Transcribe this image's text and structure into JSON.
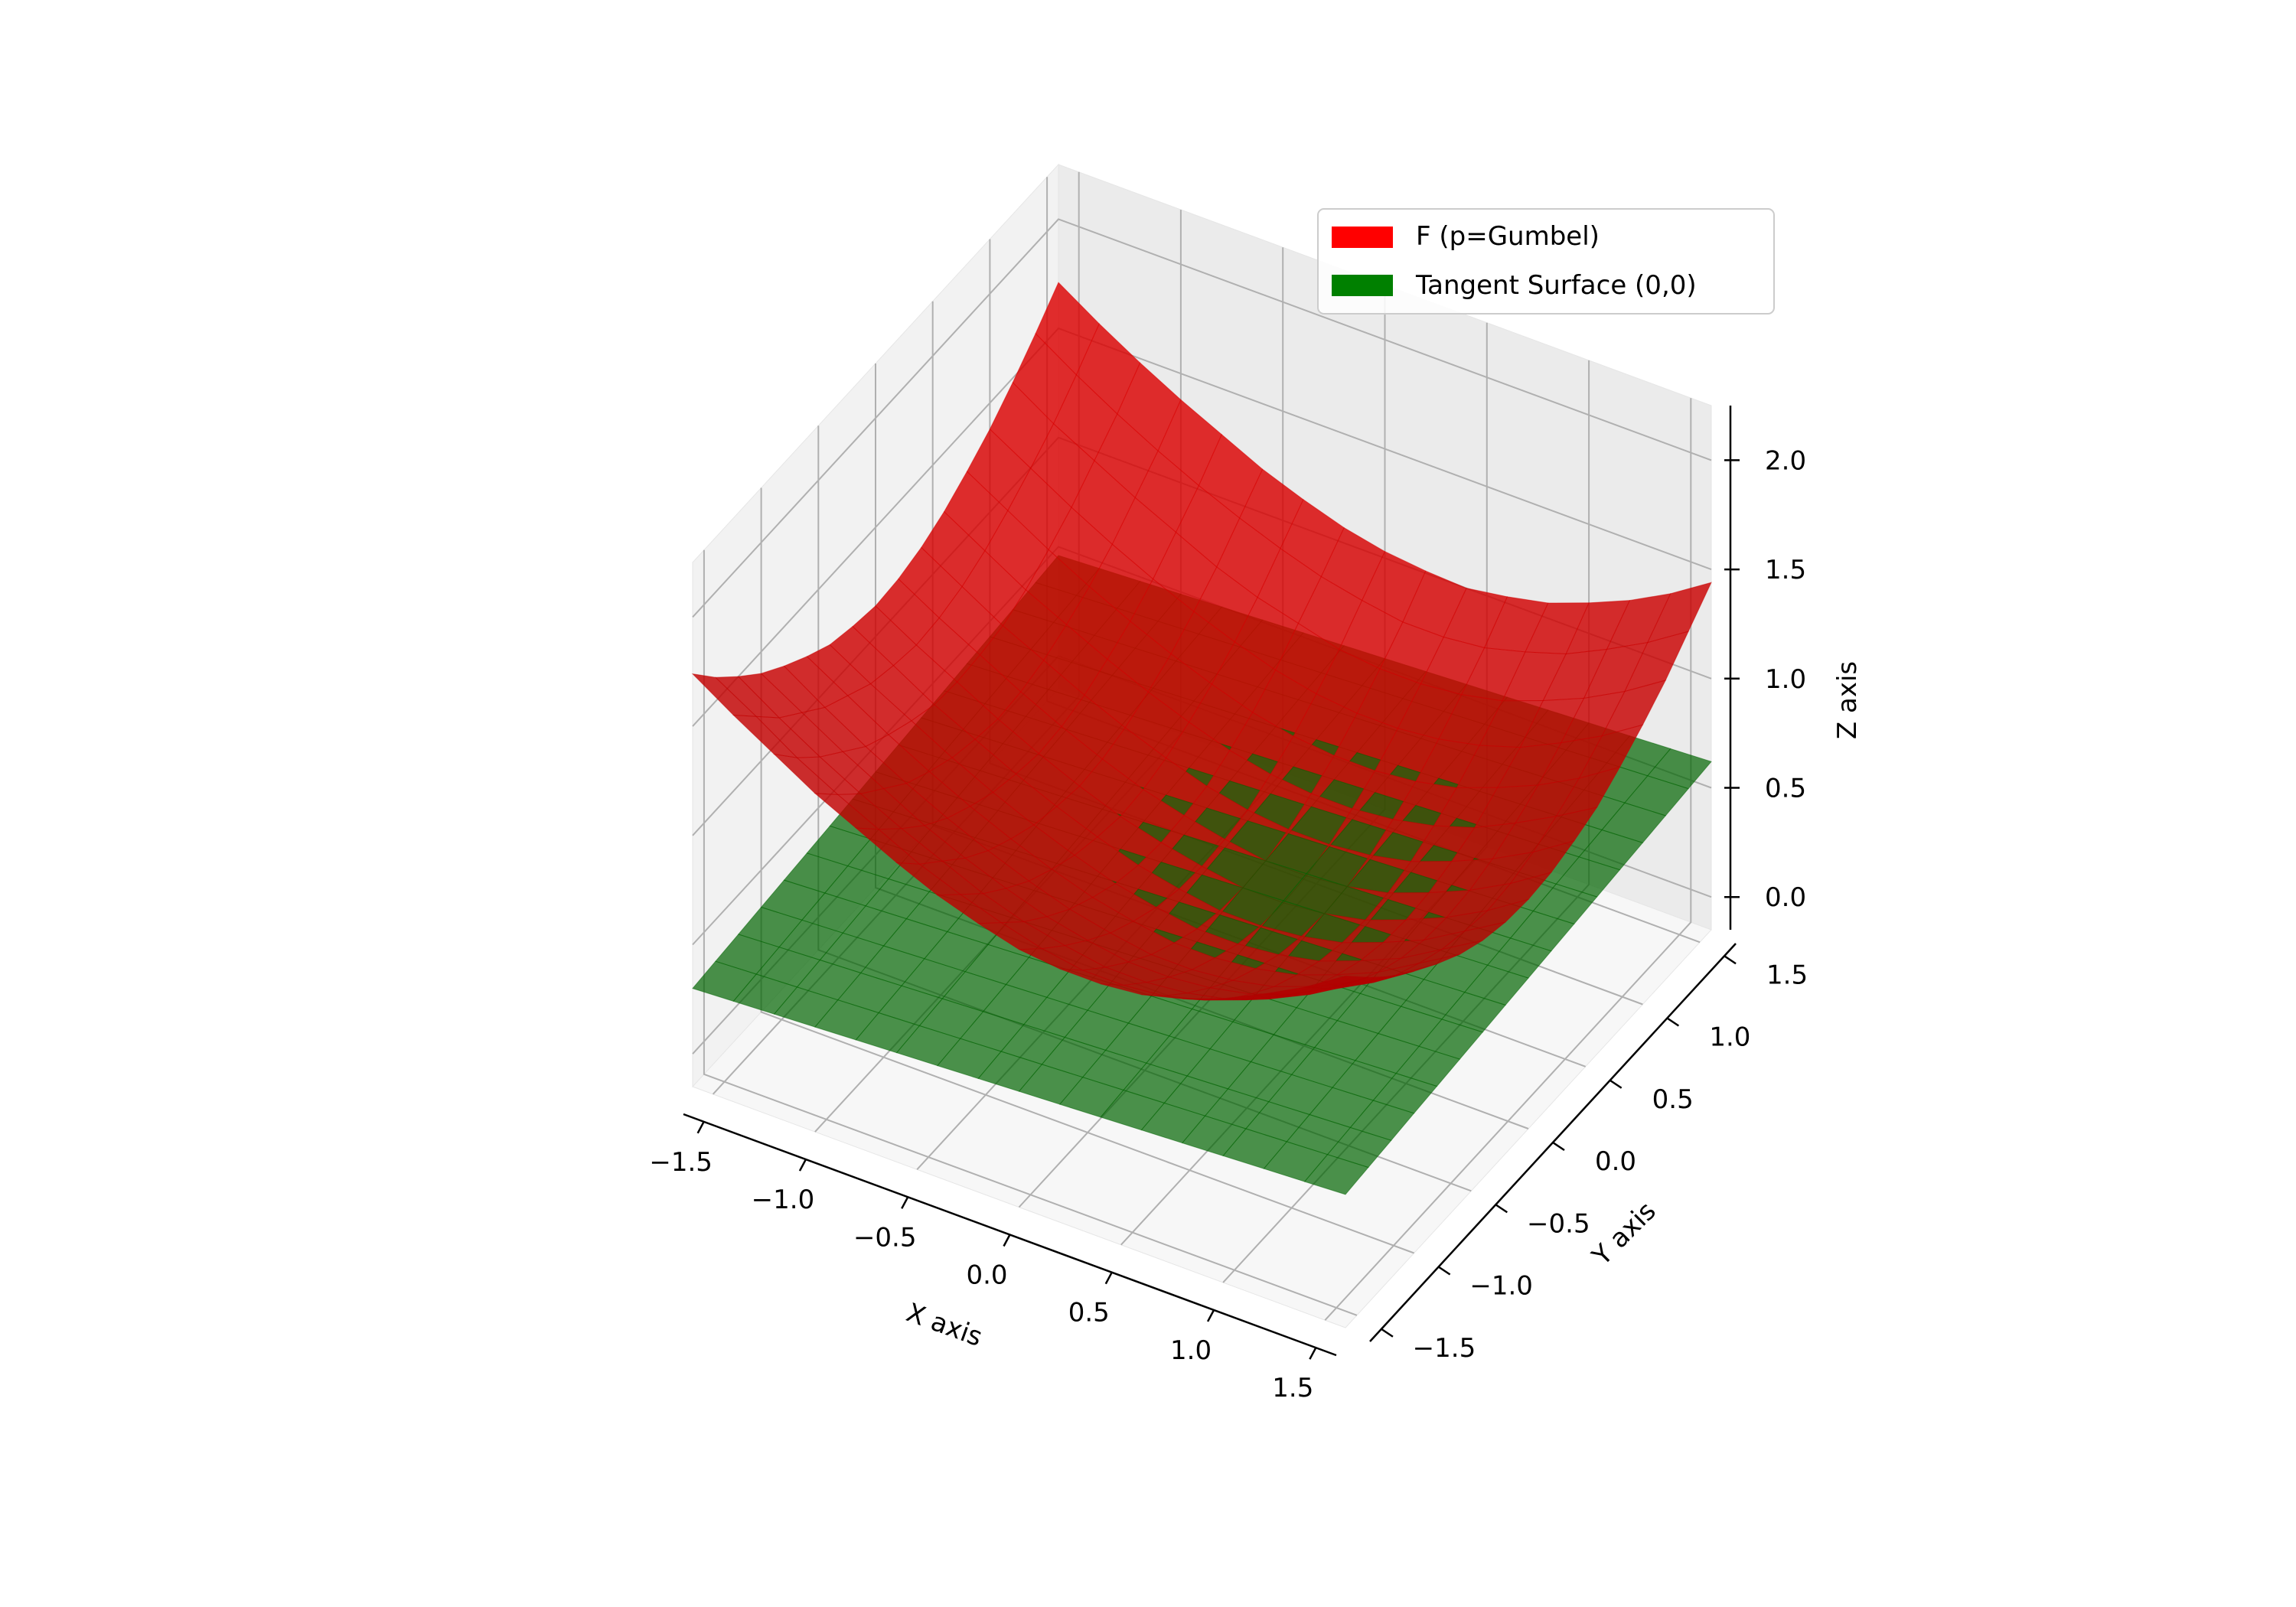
{
  "chart_data": {
    "type": "surface3d",
    "x": [
      -1.6,
      -1.4,
      -1.2,
      -1.0,
      -0.8,
      -0.6,
      -0.4,
      -0.2,
      0.0,
      0.2,
      0.4,
      0.6,
      0.8,
      1.0,
      1.2,
      1.4,
      1.6
    ],
    "y": [
      -1.6,
      -1.4,
      -1.2,
      -1.0,
      -0.8,
      -0.6,
      -0.4,
      -0.2,
      0.0,
      0.2,
      0.4,
      0.6,
      0.8,
      1.0,
      1.2,
      1.4,
      1.6
    ],
    "series": [
      {
        "name": "F (p=Gumbel)",
        "color": "#ff0000",
        "z": [
          [
            1.74,
            1.62,
            1.51,
            1.4,
            1.31,
            1.22,
            1.14,
            1.08,
            1.03,
            1.01,
            1.01,
            1.03,
            1.08,
            1.15,
            1.24,
            1.34,
            1.46
          ],
          [
            1.61,
            1.5,
            1.38,
            1.28,
            1.19,
            1.1,
            1.03,
            0.97,
            0.92,
            0.89,
            0.89,
            0.91,
            0.96,
            1.03,
            1.12,
            1.22,
            1.34
          ],
          [
            1.5,
            1.38,
            1.27,
            1.17,
            1.08,
            1.0,
            0.92,
            0.86,
            0.82,
            0.79,
            0.79,
            0.81,
            0.85,
            0.92,
            1.01,
            1.12,
            1.23
          ],
          [
            1.4,
            1.29,
            1.18,
            1.08,
            0.98,
            0.9,
            0.83,
            0.77,
            0.73,
            0.7,
            0.7,
            0.72,
            0.76,
            0.83,
            0.92,
            1.02,
            1.14
          ],
          [
            1.32,
            1.2,
            1.09,
            0.99,
            0.9,
            0.82,
            0.75,
            0.69,
            0.65,
            0.62,
            0.62,
            0.64,
            0.68,
            0.75,
            0.84,
            0.94,
            1.06
          ],
          [
            1.25,
            1.14,
            1.03,
            0.93,
            0.84,
            0.76,
            0.69,
            0.63,
            0.59,
            0.56,
            0.56,
            0.58,
            0.62,
            0.69,
            0.77,
            0.88,
            0.99
          ],
          [
            1.19,
            1.08,
            0.98,
            0.88,
            0.79,
            0.71,
            0.64,
            0.58,
            0.54,
            0.51,
            0.51,
            0.53,
            0.57,
            0.64,
            0.72,
            0.83,
            0.94
          ],
          [
            1.16,
            1.05,
            0.94,
            0.85,
            0.76,
            0.68,
            0.61,
            0.55,
            0.51,
            0.48,
            0.48,
            0.5,
            0.54,
            0.61,
            0.69,
            0.8,
            0.91
          ],
          [
            1.14,
            1.03,
            0.93,
            0.83,
            0.74,
            0.66,
            0.59,
            0.54,
            0.5,
            0.47,
            0.47,
            0.49,
            0.53,
            0.6,
            0.68,
            0.78,
            0.9
          ],
          [
            1.15,
            1.04,
            0.94,
            0.84,
            0.75,
            0.67,
            0.6,
            0.55,
            0.51,
            0.48,
            0.48,
            0.5,
            0.54,
            0.61,
            0.69,
            0.79,
            0.91
          ],
          [
            1.18,
            1.07,
            0.96,
            0.87,
            0.78,
            0.7,
            0.63,
            0.57,
            0.53,
            0.51,
            0.51,
            0.53,
            0.57,
            0.64,
            0.72,
            0.82,
            0.94
          ],
          [
            1.23,
            1.12,
            1.01,
            0.92,
            0.83,
            0.75,
            0.68,
            0.62,
            0.58,
            0.56,
            0.56,
            0.58,
            0.62,
            0.68,
            0.77,
            0.87,
            0.98
          ],
          [
            1.3,
            1.19,
            1.08,
            0.98,
            0.89,
            0.81,
            0.74,
            0.68,
            0.64,
            0.62,
            0.62,
            0.64,
            0.68,
            0.75,
            0.83,
            0.93,
            1.05
          ],
          [
            1.38,
            1.27,
            1.16,
            1.06,
            0.97,
            0.89,
            0.82,
            0.76,
            0.72,
            0.7,
            0.7,
            0.72,
            0.76,
            0.82,
            0.91,
            1.01,
            1.13
          ],
          [
            1.48,
            1.36,
            1.26,
            1.16,
            1.07,
            0.98,
            0.91,
            0.86,
            0.81,
            0.79,
            0.79,
            0.81,
            0.85,
            0.92,
            1.0,
            1.1,
            1.22
          ],
          [
            1.59,
            1.47,
            1.36,
            1.26,
            1.17,
            1.09,
            1.02,
            0.96,
            0.92,
            0.89,
            0.89,
            0.91,
            0.96,
            1.02,
            1.11,
            1.21,
            1.33
          ],
          [
            1.71,
            1.59,
            1.48,
            1.38,
            1.29,
            1.2,
            1.13,
            1.07,
            1.03,
            1.01,
            1.0,
            1.03,
            1.07,
            1.14,
            1.22,
            1.32,
            1.44
          ]
        ]
      },
      {
        "name": "Tangent Surface (0,0)",
        "color": "#008000",
        "z": [
          [
            0.3,
            0.31,
            0.32,
            0.33,
            0.34,
            0.35,
            0.36,
            0.37,
            0.38,
            0.39,
            0.4,
            0.41,
            0.42,
            0.43,
            0.44,
            0.45,
            0.46
          ],
          [
            0.31,
            0.32,
            0.33,
            0.34,
            0.35,
            0.36,
            0.37,
            0.38,
            0.39,
            0.4,
            0.41,
            0.42,
            0.43,
            0.44,
            0.45,
            0.46,
            0.47
          ],
          [
            0.32,
            0.33,
            0.34,
            0.35,
            0.36,
            0.37,
            0.38,
            0.39,
            0.4,
            0.41,
            0.42,
            0.43,
            0.44,
            0.45,
            0.46,
            0.47,
            0.48
          ],
          [
            0.33,
            0.34,
            0.35,
            0.36,
            0.37,
            0.38,
            0.39,
            0.4,
            0.41,
            0.42,
            0.43,
            0.44,
            0.45,
            0.46,
            0.47,
            0.48,
            0.49
          ],
          [
            0.34,
            0.35,
            0.36,
            0.37,
            0.38,
            0.39,
            0.4,
            0.41,
            0.42,
            0.43,
            0.44,
            0.45,
            0.46,
            0.47,
            0.48,
            0.49,
            0.5
          ],
          [
            0.35,
            0.36,
            0.37,
            0.38,
            0.39,
            0.4,
            0.41,
            0.42,
            0.43,
            0.44,
            0.45,
            0.46,
            0.47,
            0.48,
            0.49,
            0.5,
            0.51
          ],
          [
            0.36,
            0.37,
            0.38,
            0.39,
            0.4,
            0.41,
            0.42,
            0.43,
            0.44,
            0.45,
            0.46,
            0.47,
            0.48,
            0.49,
            0.5,
            0.51,
            0.52
          ],
          [
            0.37,
            0.38,
            0.39,
            0.4,
            0.41,
            0.42,
            0.43,
            0.44,
            0.45,
            0.46,
            0.47,
            0.48,
            0.49,
            0.5,
            0.51,
            0.52,
            0.53
          ],
          [
            0.38,
            0.39,
            0.4,
            0.41,
            0.42,
            0.43,
            0.44,
            0.45,
            0.46,
            0.47,
            0.48,
            0.49,
            0.5,
            0.51,
            0.52,
            0.53,
            0.54
          ],
          [
            0.39,
            0.4,
            0.41,
            0.42,
            0.43,
            0.44,
            0.45,
            0.46,
            0.47,
            0.48,
            0.49,
            0.5,
            0.51,
            0.52,
            0.53,
            0.54,
            0.55
          ],
          [
            0.4,
            0.41,
            0.42,
            0.43,
            0.44,
            0.45,
            0.46,
            0.47,
            0.48,
            0.49,
            0.5,
            0.51,
            0.52,
            0.53,
            0.54,
            0.55,
            0.56
          ],
          [
            0.41,
            0.42,
            0.43,
            0.44,
            0.45,
            0.46,
            0.47,
            0.48,
            0.49,
            0.5,
            0.51,
            0.52,
            0.53,
            0.54,
            0.55,
            0.56,
            0.57
          ],
          [
            0.42,
            0.43,
            0.44,
            0.45,
            0.46,
            0.47,
            0.48,
            0.49,
            0.5,
            0.51,
            0.52,
            0.53,
            0.54,
            0.55,
            0.56,
            0.57,
            0.58
          ],
          [
            0.43,
            0.44,
            0.45,
            0.46,
            0.47,
            0.48,
            0.49,
            0.5,
            0.51,
            0.52,
            0.53,
            0.54,
            0.55,
            0.56,
            0.57,
            0.58,
            0.59
          ],
          [
            0.44,
            0.45,
            0.46,
            0.47,
            0.48,
            0.49,
            0.5,
            0.51,
            0.52,
            0.53,
            0.54,
            0.55,
            0.56,
            0.57,
            0.58,
            0.59,
            0.6
          ],
          [
            0.45,
            0.46,
            0.47,
            0.48,
            0.49,
            0.5,
            0.51,
            0.52,
            0.53,
            0.54,
            0.55,
            0.56,
            0.57,
            0.58,
            0.59,
            0.6,
            0.61
          ],
          [
            0.46,
            0.47,
            0.48,
            0.49,
            0.5,
            0.51,
            0.52,
            0.53,
            0.54,
            0.55,
            0.56,
            0.57,
            0.58,
            0.59,
            0.6,
            0.61,
            0.62
          ]
        ]
      }
    ],
    "xlabel": "X axis",
    "ylabel": "Y axis",
    "zlabel": "Z axis",
    "xticks": [
      "−1.5",
      "−1.0",
      "−0.5",
      "0.0",
      "0.5",
      "1.0",
      "1.5"
    ],
    "yticks": [
      "−1.5",
      "−1.0",
      "−0.5",
      "0.0",
      "0.5",
      "1.0",
      "1.5"
    ],
    "zticks": [
      "0.0",
      "0.5",
      "1.0",
      "1.5",
      "2.0"
    ],
    "xlim": [
      -1.6,
      1.6
    ],
    "ylim": [
      -1.6,
      1.6
    ],
    "zlim": [
      -0.15,
      2.25
    ],
    "grid": true,
    "legend_position": "top-right"
  }
}
